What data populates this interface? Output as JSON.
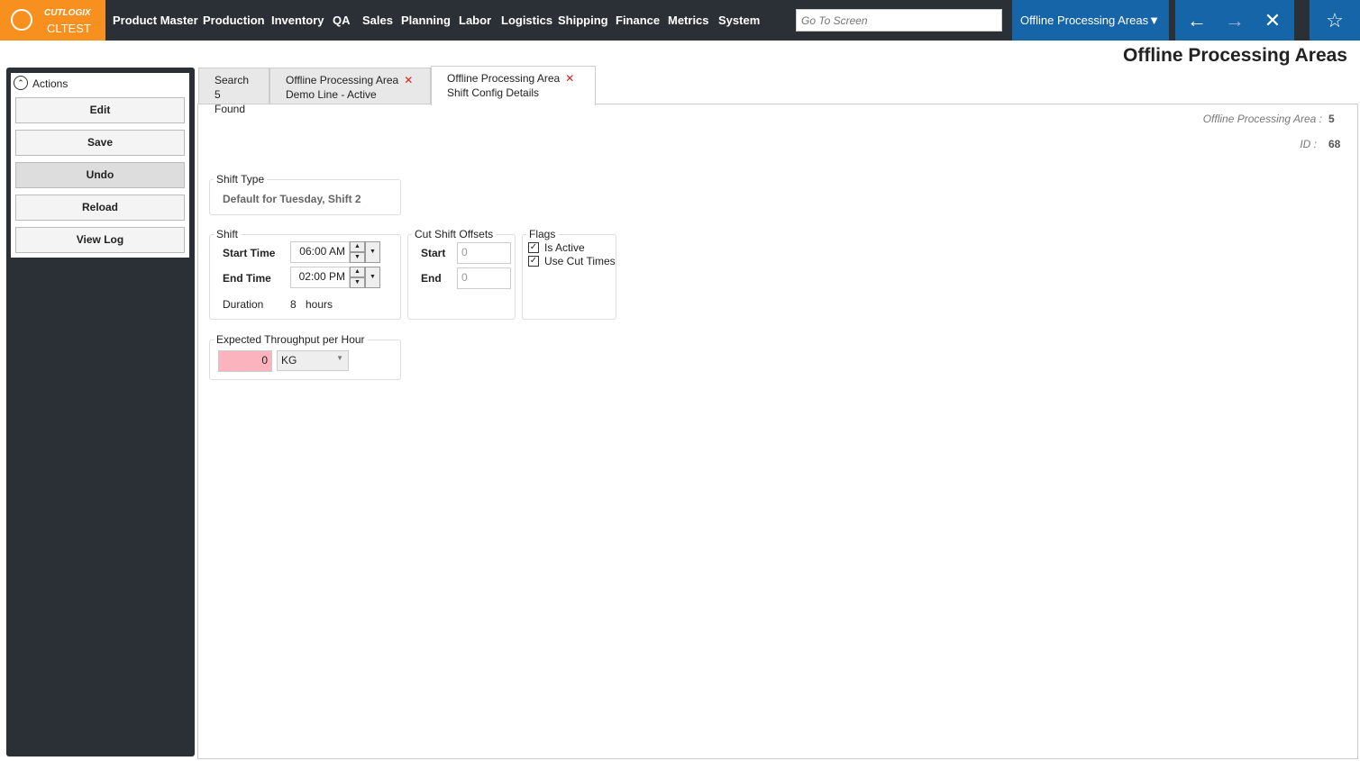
{
  "brand": {
    "logo_text": "CUTLOGIX",
    "env": "CLTEST",
    "color": "#f7901e"
  },
  "nav": [
    "Product Master",
    "Production",
    "Inventory",
    "QA",
    "Sales",
    "Planning",
    "Labor",
    "Logistics",
    "Shipping",
    "Finance",
    "Metrics",
    "System"
  ],
  "goto": {
    "placeholder": "Go To Screen"
  },
  "screen_select": "Offline Processing Areas",
  "page_title": "Offline Processing Areas",
  "actions": {
    "title": "Actions",
    "buttons": [
      "Edit",
      "Save",
      "Undo",
      "Reload",
      "View Log"
    ]
  },
  "tabs": [
    {
      "line1": "Search",
      "line2": "5 Found"
    },
    {
      "line1": "Offline Processing Area",
      "line2": "Demo Line - Active"
    },
    {
      "line1": "Offline Processing Area",
      "line2": "Shift Config Details"
    }
  ],
  "meta": {
    "area_label": "Offline Processing Area :",
    "area_value": "5",
    "id_label": "ID :",
    "id_value": "68"
  },
  "shift_type": {
    "label": "Shift Type",
    "value": "Default for Tuesday, Shift 2"
  },
  "shift": {
    "label": "Shift",
    "start_label": "Start Time",
    "start": "06:00 AM",
    "end_label": "End Time",
    "end": "02:00 PM",
    "duration_label": "Duration",
    "duration": "8",
    "duration_unit": "hours"
  },
  "cut": {
    "label": "Cut Shift Offsets",
    "start_label": "Start",
    "start": "0",
    "end_label": "End",
    "end": "0"
  },
  "flags": {
    "label": "Flags",
    "is_active": "Is Active",
    "use_cut": "Use Cut Times"
  },
  "throughput": {
    "label": "Expected Throughput per Hour",
    "value": "0",
    "unit": "KG"
  }
}
